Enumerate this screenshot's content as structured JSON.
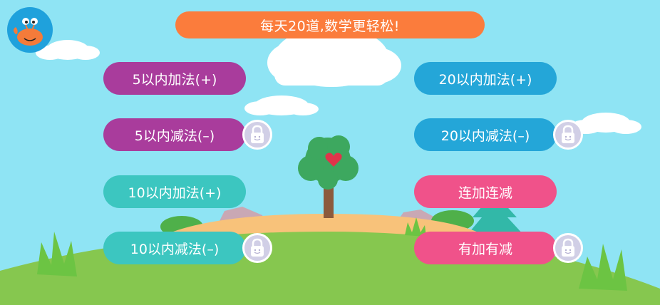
{
  "banner": {
    "text": "每天20道,数学更轻松!"
  },
  "colors": {
    "sky": "#8fe4f4",
    "banner": "#fb7c3c",
    "purple": "#a93c9c",
    "teal": "#3cc6c0",
    "blue": "#24a6d8",
    "pink": "#f0528a",
    "lock": "#d1cfe6"
  },
  "left_column": [
    {
      "label": "5以内加法(+)",
      "color": "purple",
      "locked": false
    },
    {
      "label": "5以内减法(–)",
      "color": "purple",
      "locked": true
    },
    {
      "label": "10以内加法(+)",
      "color": "teal",
      "locked": false
    },
    {
      "label": "10以内减法(–)",
      "color": "teal",
      "locked": true
    }
  ],
  "right_column": [
    {
      "label": "20以内加法(+)",
      "color": "blue",
      "locked": false
    },
    {
      "label": "20以内减法(–)",
      "color": "blue",
      "locked": true
    },
    {
      "label": "连加连减",
      "color": "pink",
      "locked": false
    },
    {
      "label": "有加有减",
      "color": "pink",
      "locked": true
    }
  ],
  "icons": {
    "avatar": "crab-icon",
    "lock": "lock-icon"
  }
}
